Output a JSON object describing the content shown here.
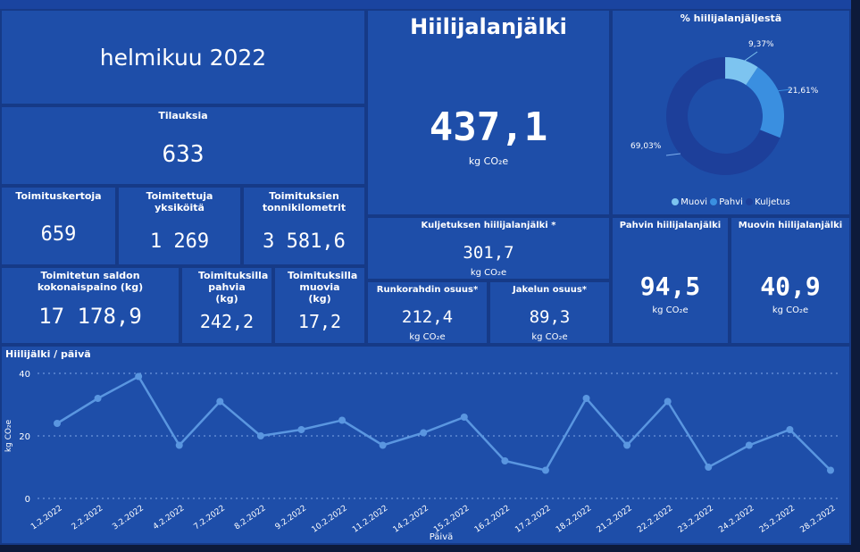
{
  "period": {
    "label": "helmikuu 2022"
  },
  "footprint": {
    "title": "Hiilijalanjälki",
    "value": "437,1",
    "unit": "kg CO₂e"
  },
  "orders": {
    "label": "Tilauksia",
    "value": "633"
  },
  "deliveries": {
    "label": "Toimituskertoja",
    "value": "659"
  },
  "units": {
    "label": "Toimitettuja yksiköitä",
    "value": "1 269"
  },
  "tonkm": {
    "label": "Toimituksien tonnikilometrit",
    "value": "3 581,6"
  },
  "weight": {
    "label": "Toimitetun saldon kokonaispaino (kg)",
    "value": "17 178,9"
  },
  "cardboard_delivered": {
    "label": "Toimituksilla pahvia (kg)",
    "value": "242,2"
  },
  "plastic_delivered": {
    "label": "Toimituksilla muovia (kg)",
    "value": "17,2"
  },
  "transport": {
    "label": "Kuljetuksen hiilijalanjälki *",
    "value": "301,7",
    "unit": "kg CO₂e"
  },
  "trunk": {
    "label": "Runkorahdin osuus*",
    "value": "212,4",
    "unit": "kg CO₂e"
  },
  "distribution": {
    "label": "Jakelun osuus*",
    "value": "89,3",
    "unit": "kg CO₂e"
  },
  "cardboard_fp": {
    "label": "Pahvin hiilijalanjälki",
    "value": "94,5",
    "unit": "kg CO₂e"
  },
  "plastic_fp": {
    "label": "Muovin hiilijalanjälki",
    "value": "40,9",
    "unit": "kg CO₂e"
  },
  "colors": {
    "muovi": "#7dc4f0",
    "pahvi": "#3a8fe0",
    "kuljetus": "#1d3f9a",
    "line": "#5a96e0"
  },
  "donut": {
    "title": "% hiilijalanjäljestä",
    "slices": [
      {
        "name": "Muovi",
        "pct": 9.37,
        "label": "9,37%"
      },
      {
        "name": "Pahvi",
        "pct": 21.61,
        "label": "21,61%"
      },
      {
        "name": "Kuljetus",
        "pct": 69.03,
        "label": "69,03%"
      }
    ]
  },
  "chart_data": {
    "type": "line",
    "title": "Hiilijälki / päivä",
    "xlabel": "Päivä",
    "ylabel": "kg CO₂e",
    "ylim": [
      0,
      40
    ],
    "yticks": [
      "0",
      "20",
      "40"
    ],
    "categories": [
      "1.2.2022",
      "2.2.2022",
      "3.2.2022",
      "4.2.2022",
      "7.2.2022",
      "8.2.2022",
      "9.2.2022",
      "10.2.2022",
      "11.2.2022",
      "14.2.2022",
      "15.2.2022",
      "16.2.2022",
      "17.2.2022",
      "18.2.2022",
      "21.2.2022",
      "22.2.2022",
      "23.2.2022",
      "24.2.2022",
      "25.2.2022",
      "28.2.2022"
    ],
    "values": [
      24,
      32,
      39,
      17,
      31,
      20,
      22,
      25,
      17,
      21,
      26,
      12,
      9,
      32,
      17,
      31,
      10,
      17,
      22,
      9
    ]
  }
}
